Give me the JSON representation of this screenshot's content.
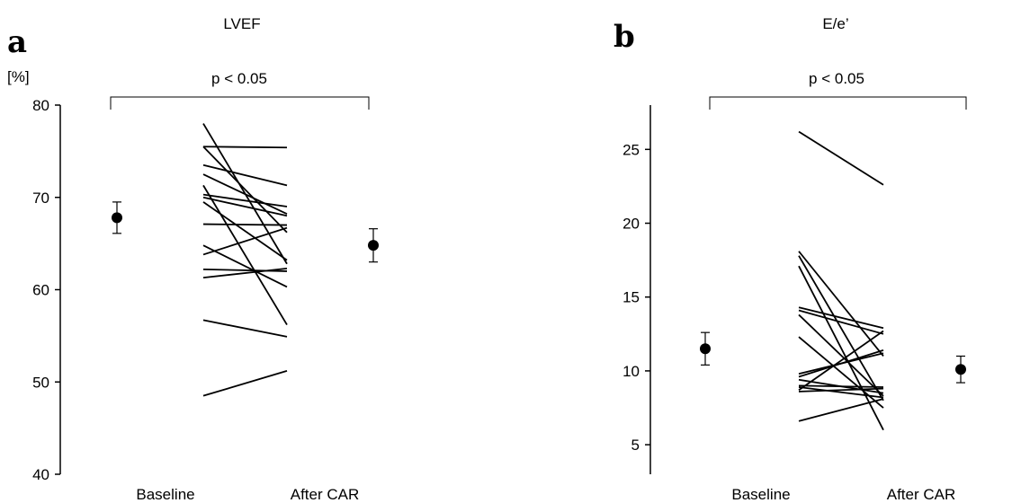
{
  "chart_data": [
    {
      "type": "line",
      "panel_label": "a",
      "title": "LVEF",
      "unit_label": "[%]",
      "categories": [
        "Baseline",
        "After CAR"
      ],
      "ylim": [
        40,
        80
      ],
      "yticks": [
        40,
        50,
        60,
        70,
        80
      ],
      "significance": "p < 0.05",
      "grid": false,
      "subjects": [
        {
          "baseline": 78.0,
          "after": 62.8
        },
        {
          "baseline": 75.5,
          "after": 75.4
        },
        {
          "baseline": 75.5,
          "after": 66.2
        },
        {
          "baseline": 73.5,
          "after": 71.3
        },
        {
          "baseline": 72.5,
          "after": 68.2
        },
        {
          "baseline": 71.3,
          "after": 56.2
        },
        {
          "baseline": 70.3,
          "after": 69.0
        },
        {
          "baseline": 70.0,
          "after": 68.0
        },
        {
          "baseline": 69.5,
          "after": 63.2
        },
        {
          "baseline": 67.1,
          "after": 67.0
        },
        {
          "baseline": 64.8,
          "after": 60.3
        },
        {
          "baseline": 63.8,
          "after": 66.7
        },
        {
          "baseline": 62.2,
          "after": 62.0
        },
        {
          "baseline": 61.3,
          "after": 62.3
        },
        {
          "baseline": 56.7,
          "after": 54.9
        },
        {
          "baseline": 48.5,
          "after": 51.2
        }
      ],
      "summary": [
        {
          "label": "Baseline",
          "mean": 67.8,
          "lower": 66.1,
          "upper": 69.5
        },
        {
          "label": "After CAR",
          "mean": 64.8,
          "lower": 63.0,
          "upper": 66.6
        }
      ]
    },
    {
      "type": "line",
      "panel_label": "b",
      "title": "E/e’",
      "unit_label": "",
      "categories": [
        "Baseline",
        "After CAR"
      ],
      "ylim": [
        3,
        28
      ],
      "yticks": [
        5,
        10,
        15,
        20,
        25
      ],
      "significance": "p < 0.05",
      "grid": false,
      "subjects": [
        {
          "baseline": 26.2,
          "after": 22.6
        },
        {
          "baseline": 18.1,
          "after": 11.0
        },
        {
          "baseline": 17.8,
          "after": 8.0
        },
        {
          "baseline": 17.1,
          "after": 6.0
        },
        {
          "baseline": 14.3,
          "after": 12.9
        },
        {
          "baseline": 14.1,
          "after": 12.5
        },
        {
          "baseline": 13.8,
          "after": 8.3
        },
        {
          "baseline": 12.3,
          "after": 7.5
        },
        {
          "baseline": 9.8,
          "after": 11.2
        },
        {
          "baseline": 9.6,
          "after": 11.4
        },
        {
          "baseline": 9.4,
          "after": 8.5
        },
        {
          "baseline": 9.0,
          "after": 8.9
        },
        {
          "baseline": 8.9,
          "after": 8.2
        },
        {
          "baseline": 8.7,
          "after": 12.7
        },
        {
          "baseline": 8.6,
          "after": 8.8
        },
        {
          "baseline": 6.6,
          "after": 8.1
        }
      ],
      "summary": [
        {
          "label": "Baseline",
          "mean": 11.5,
          "lower": 10.4,
          "upper": 12.6
        },
        {
          "label": "After CAR",
          "mean": 10.1,
          "lower": 9.2,
          "upper": 11.0
        }
      ]
    }
  ]
}
